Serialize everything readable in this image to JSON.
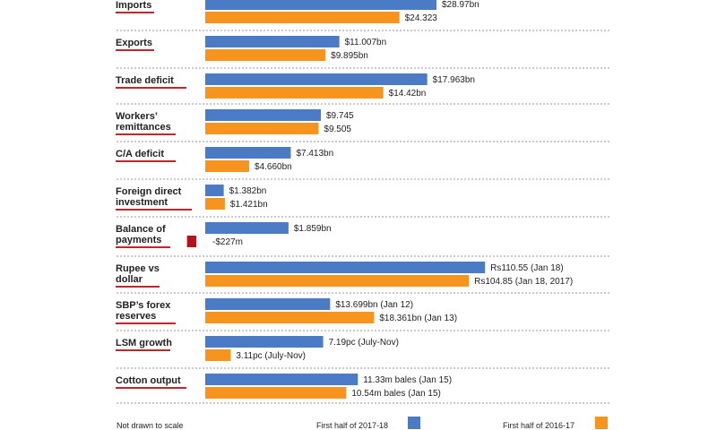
{
  "chart_data": {
    "type": "bar",
    "orientation": "horizontal",
    "note": "Not drawn to scale",
    "colors": {
      "first_half_2017_18": "#4a7bc4",
      "first_half_2016_17": "#f7941d",
      "negative": "#b5121b",
      "underline": "#c0272d",
      "divider": "#9a9a9a"
    },
    "series": [
      {
        "name": "First half of 2017-18",
        "key": "first_half_2017_18"
      },
      {
        "name": "First half of 2016-17",
        "key": "first_half_2016_17"
      }
    ],
    "categories": [
      {
        "label": [
          "Imports"
        ],
        "values": [
          28.97,
          24.323
        ],
        "value_labels": [
          "$28.97bn",
          "$24.323"
        ],
        "bar_ratio": [
          1.0,
          0.84
        ]
      },
      {
        "label": [
          "Exports"
        ],
        "values": [
          11.007,
          9.895
        ],
        "value_labels": [
          "$11.007bn",
          "$9.895bn"
        ],
        "bar_ratio": [
          0.58,
          0.52
        ]
      },
      {
        "label": [
          "Trade deficit"
        ],
        "values": [
          17.963,
          14.42
        ],
        "value_labels": [
          "$17.963bn",
          "$14.42bn"
        ],
        "bar_ratio": [
          0.96,
          0.77
        ]
      },
      {
        "label": [
          "Workers’",
          "remittances"
        ],
        "values": [
          9.745,
          9.505
        ],
        "value_labels": [
          "$9.745",
          "$9.505"
        ],
        "bar_ratio": [
          0.5,
          0.49
        ]
      },
      {
        "label": [
          "C/A deficit"
        ],
        "values": [
          7.413,
          4.66
        ],
        "value_labels": [
          "$7.413bn",
          "$4.660bn"
        ],
        "bar_ratio": [
          0.37,
          0.19
        ]
      },
      {
        "label": [
          "Foreign direct",
          "investment"
        ],
        "values": [
          1.382,
          1.421
        ],
        "value_labels": [
          "$1.382bn",
          "$1.421bn"
        ],
        "bar_ratio": [
          0.08,
          0.085
        ]
      },
      {
        "label": [
          "Balance of",
          "payments"
        ],
        "values": [
          1.859,
          -0.227
        ],
        "value_labels": [
          "$1.859bn",
          "-$227m"
        ],
        "bar_ratio": [
          0.36,
          -0.04
        ]
      },
      {
        "label": [
          "Rupee vs",
          "dollar"
        ],
        "values": [
          110.55,
          104.85
        ],
        "value_labels": [
          "Rs110.55 (Jan 18)",
          "Rs104.85 (Jan 18, 2017)"
        ],
        "bar_ratio": [
          1.21,
          1.14
        ]
      },
      {
        "label": [
          "SBP’s forex",
          "reserves"
        ],
        "values": [
          13.699,
          18.361
        ],
        "value_labels": [
          "$13.699bn (Jan 12)",
          "$18.361bn (Jan 13)"
        ],
        "bar_ratio": [
          0.54,
          0.73
        ]
      },
      {
        "label": [
          "LSM growth"
        ],
        "values": [
          7.19,
          3.11
        ],
        "value_labels": [
          "7.19pc (July-Nov)",
          "3.11pc (July-Nov)"
        ],
        "bar_ratio": [
          0.51,
          0.11
        ]
      },
      {
        "label": [
          "Cotton output"
        ],
        "values": [
          11.33,
          10.54
        ],
        "value_labels": [
          "11.33m bales (Jan 15)",
          "10.54m bales (Jan 15)"
        ],
        "bar_ratio": [
          0.66,
          0.61
        ]
      }
    ]
  }
}
